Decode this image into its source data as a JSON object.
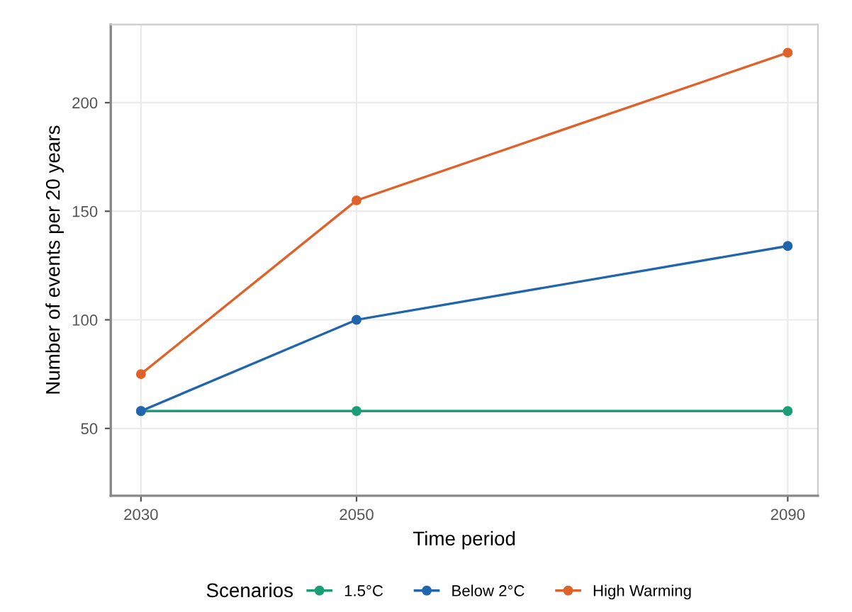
{
  "chart_data": {
    "type": "line",
    "xlabel": "Time period",
    "ylabel": "Number of events per 20 years",
    "legend_title": "Scenarios",
    "x": [
      2030,
      2050,
      2090
    ],
    "series": [
      {
        "name": "1.5°C",
        "color": "#1b9e77",
        "values": [
          58,
          58,
          58
        ]
      },
      {
        "name": "Below 2°C",
        "color": "#2166ac",
        "values": [
          58,
          100,
          134
        ]
      },
      {
        "name": "High Warming",
        "color": "#e0622b",
        "values": [
          75,
          155,
          223
        ]
      }
    ],
    "xlim": [
      2027.2,
      2092.8
    ],
    "xticks": [
      2030,
      2050,
      2090
    ],
    "ylim": [
      19,
      236
    ],
    "yticks": [
      50,
      100,
      150,
      200
    ],
    "grid": true,
    "legend": "bottom",
    "marker": "circle",
    "line_style": "solid"
  }
}
